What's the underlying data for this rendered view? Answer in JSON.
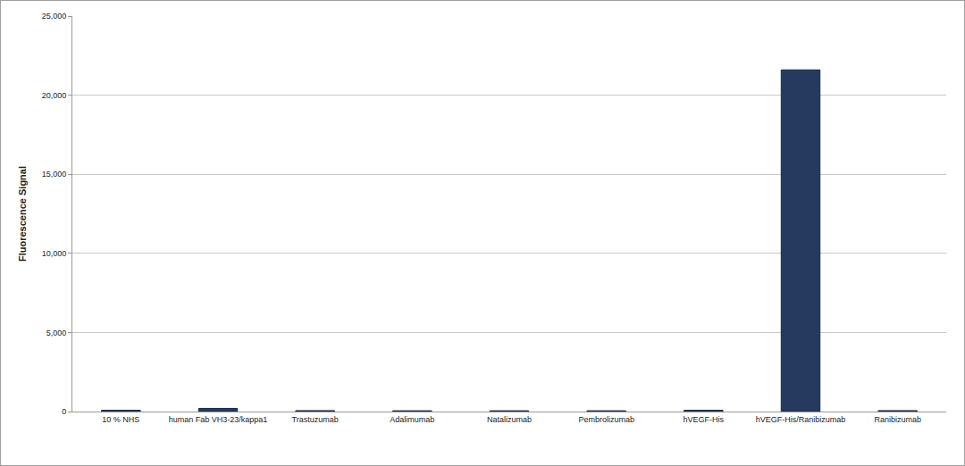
{
  "chart_data": {
    "type": "bar",
    "y_label": "Fluorescence Signal",
    "categories": [
      "10 % NHS",
      "human Fab VH3-23/kappa1",
      "Trastuzumab",
      "Adalimumab",
      "Natalizumab",
      "Pembrolizumab",
      "hVEGF-His",
      "hVEGF-His/Ranibizumab",
      "Ranibizumab"
    ],
    "values": [
      80,
      200,
      60,
      50,
      50,
      50,
      80,
      21600,
      60
    ],
    "color": "#253a5e",
    "ylim": [
      0,
      25000
    ],
    "yticks": [
      0,
      {
        "value": 5000,
        "label": "5,000"
      },
      {
        "value": 10000,
        "label": "10,000"
      },
      {
        "value": 15000,
        "label": "15,000"
      },
      {
        "value": 20000,
        "label": "20,000"
      },
      {
        "value": 25000,
        "label": "25,000"
      }
    ],
    "grid": true
  }
}
